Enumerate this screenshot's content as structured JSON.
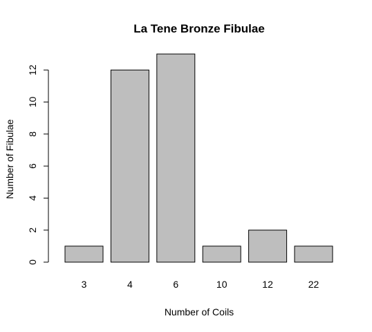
{
  "chart_data": {
    "type": "bar",
    "title": "La Tene Bronze Fibulae",
    "xlabel": "Number of Coils",
    "ylabel": "Number of Fibulae",
    "categories": [
      "3",
      "4",
      "6",
      "10",
      "12",
      "22"
    ],
    "values": [
      1,
      12,
      13,
      1,
      2,
      1
    ],
    "yticks": [
      0,
      2,
      4,
      6,
      8,
      10,
      12
    ],
    "ylim": [
      0,
      13
    ],
    "bar_color": "#bebebe",
    "bar_border_color": "#000000",
    "grid": false,
    "legend": "none"
  }
}
